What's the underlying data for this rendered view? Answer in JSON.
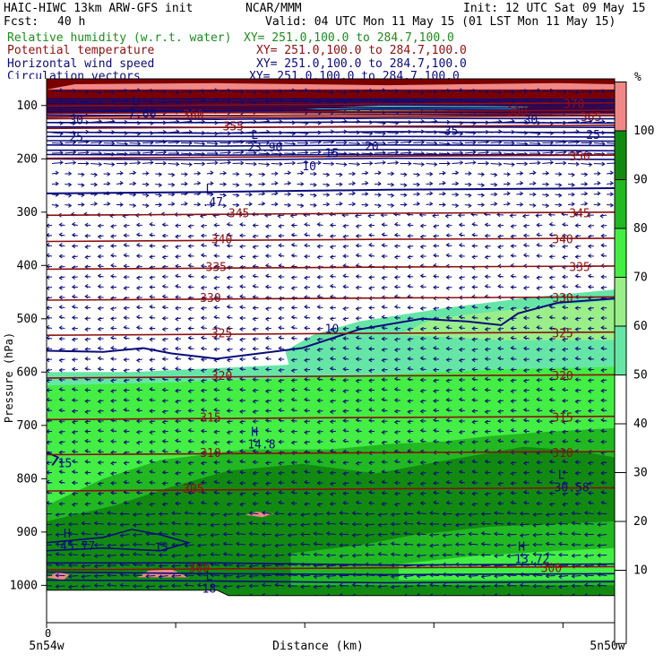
{
  "header": {
    "model": "HAIC-HIWC 13km ARW-GFS init",
    "org": "NCAR/MMM",
    "init": "Init: 12 UTC Sat 09 May 15",
    "fcst_label": "Fcst:",
    "fcst_value": "40 h",
    "valid": "Valid: 04 UTC Mon 11 May 15 (01 LST Mon 11 May 15)"
  },
  "fields": [
    {
      "name": "Relative humidity (w.r.t. water)",
      "xy": "XY= 251.0,100.0 to 284.7,100.0",
      "color": "#1f8a1f"
    },
    {
      "name": "Potential temperature",
      "xy": "XY= 251.0,100.0 to 284.7,100.0",
      "color": "#8b1010"
    },
    {
      "name": "Horizontal wind speed",
      "xy": "XY= 251.0,100.0 to 284.7,100.0",
      "color": "#0b0b7a"
    },
    {
      "name": "Circulation vectors",
      "xy": "XY= 251.0,100.0 to 284.7,100.0",
      "color": "#0b0b7a"
    }
  ],
  "chart_data": {
    "type": "heatmap",
    "ylabel": "Pressure (hPa)",
    "xlabel": "Distance (km)",
    "x_start_label": "0",
    "x_left_label": "5n54w",
    "x_right_label": "5n50w",
    "y_ticks": [
      100,
      200,
      300,
      400,
      500,
      600,
      700,
      800,
      900,
      1000
    ],
    "ylim": [
      1070,
      50
    ],
    "rh_colorbar": {
      "unit": "%",
      "levels": [
        10,
        20,
        30,
        40,
        50,
        60,
        70,
        80,
        90,
        100
      ],
      "bands": [
        {
          "range": "<50",
          "color": "#ffffff"
        },
        {
          "range": "50-60",
          "color": "#66e6a6"
        },
        {
          "range": "60-70",
          "color": "#9aef8a"
        },
        {
          "range": "70-80",
          "color": "#44ee44"
        },
        {
          "range": "80-90",
          "color": "#22b822"
        },
        {
          "range": "90-100",
          "color": "#128a12"
        },
        {
          "range": ">100",
          "color": "#f08888"
        }
      ]
    },
    "theta_contours": [
      {
        "label": "300",
        "p": 968
      },
      {
        "label": "305",
        "p": 820
      },
      {
        "label": "310",
        "p": 752
      },
      {
        "label": "315",
        "p": 686
      },
      {
        "label": "320",
        "p": 608
      },
      {
        "label": "325",
        "p": 528
      },
      {
        "label": "330",
        "p": 462
      },
      {
        "label": "335",
        "p": 404
      },
      {
        "label": "340",
        "p": 352
      },
      {
        "label": "345",
        "p": 303
      },
      {
        "label": "350",
        "p": 196
      },
      {
        "label": "355",
        "p": 140
      },
      {
        "label": "360",
        "p": 118
      },
      {
        "label": "365",
        "p": 122
      },
      {
        "label": "370",
        "p": 98
      },
      {
        "label": "380",
        "p": 112
      }
    ],
    "wind_speed_labels": [
      "10",
      "15",
      "20",
      "25",
      "30",
      "35"
    ],
    "extrema_labels": [
      {
        "mark": "L",
        "value": ".47"
      },
      {
        "mark": "L",
        "value": "23.90"
      },
      {
        "mark": "H",
        "value": "14.8"
      },
      {
        "mark": "L",
        "value": "30.58"
      },
      {
        "mark": "H",
        "value": "45.77"
      },
      {
        "mark": "H",
        "value": "13.72"
      },
      {
        "mark": "L",
        "value": "18"
      },
      {
        "mark": "L",
        "value": "7.60"
      }
    ]
  }
}
